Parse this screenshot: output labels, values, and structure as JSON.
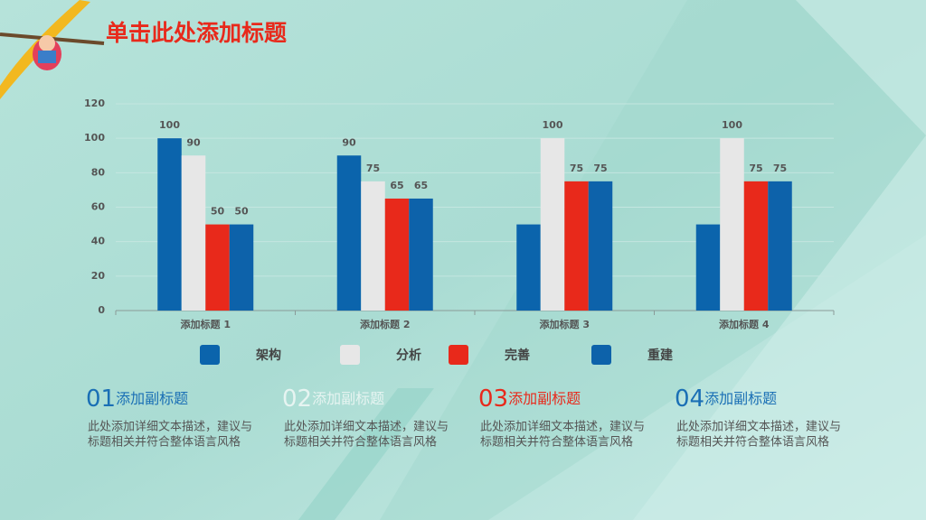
{
  "chart_data": {
    "type": "bar",
    "title": "单击此处添加标题",
    "categories": [
      "添加标题 1",
      "添加标题 2",
      "添加标题 3",
      "添加标题 4"
    ],
    "series": [
      {
        "name": "架构",
        "color": "#0b64ac",
        "values": [
          100,
          90,
          50,
          50
        ],
        "value_labels": [
          "100",
          "90",
          null,
          null
        ]
      },
      {
        "name": "分析",
        "color": "#e7e7e7",
        "values": [
          90,
          75,
          100,
          100
        ],
        "labels": true
      },
      {
        "name": "完善",
        "color": "#e8291b",
        "values": [
          50,
          65,
          75,
          75
        ],
        "labels": true
      },
      {
        "name": "重建",
        "color": "#0d62aa",
        "values": [
          50,
          65,
          75,
          75
        ],
        "labels": true
      }
    ],
    "ylim": [
      0,
      120
    ],
    "yticks": [
      0,
      20,
      40,
      60,
      80,
      100,
      120
    ],
    "grid": true
  },
  "sections": [
    {
      "number": "01",
      "subtitle": "添加副标题",
      "color": "#1a6fb5",
      "lines": [
        "此处添加详细文本描述，建议与",
        "标题相关并符合整体语言风格"
      ]
    },
    {
      "number": "02",
      "subtitle": "添加副标题",
      "color": "#e6f4f1",
      "lines": [
        "此处添加详细文本描述，建议与",
        "标题相关并符合整体语言风格"
      ]
    },
    {
      "number": "03",
      "subtitle": "添加副标题",
      "color": "#e8291b",
      "lines": [
        "此处添加详细文本描述，建议与",
        "标题相关并符合整体语言风格"
      ]
    },
    {
      "number": "04",
      "subtitle": "添加副标题",
      "color": "#1a6fb5",
      "lines": [
        "此处添加详细文本描述，建议与",
        "标题相关并符合整体语言风格"
      ]
    }
  ]
}
